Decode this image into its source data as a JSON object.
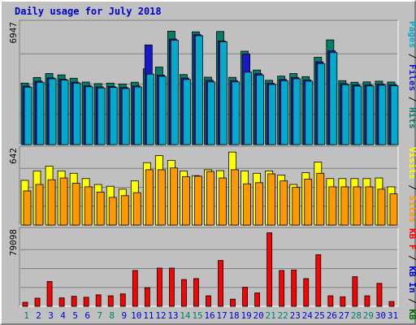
{
  "title": "Daily usage for July 2018",
  "colors": {
    "pages": "#00aacc",
    "files": "#1818c8",
    "hits": "#008066",
    "sites": "#ff9900",
    "visits": "#ffff00",
    "kb_in": "#0000cc",
    "kb_out": "#006600",
    "kb_f": "#ff0000",
    "weekend_label": "#008066",
    "weekday_label": "#0000cc"
  },
  "chart_data": [
    {
      "type": "bar",
      "panel": "top",
      "y_max_label": "6947",
      "y_max": 6947,
      "right_label_parts": [
        {
          "text": "Pages",
          "color_key": "pages"
        },
        {
          "text": " / ",
          "color_key": "text"
        },
        {
          "text": "Files",
          "color_key": "files"
        },
        {
          "text": " / ",
          "color_key": "text"
        },
        {
          "text": "Hits",
          "color_key": "hits"
        }
      ],
      "series": [
        {
          "name": "Hits",
          "color_key": "hits",
          "values": [
            3530,
            3850,
            4080,
            4000,
            3810,
            3590,
            3500,
            3530,
            3480,
            3580,
            4350,
            4450,
            6510,
            4020,
            6470,
            3870,
            6490,
            3860,
            5360,
            4280,
            3690,
            3930,
            4080,
            3900,
            5010,
            6010,
            3670,
            3580,
            3600,
            3640,
            3590
          ]
        },
        {
          "name": "Files",
          "color_key": "files",
          "values": [
            3360,
            3640,
            3830,
            3750,
            3580,
            3380,
            3310,
            3330,
            3280,
            3370,
            5720,
            3990,
            6060,
            3820,
            6310,
            3690,
            5950,
            3670,
            5200,
            4070,
            3520,
            3740,
            3850,
            3710,
            4750,
            5380,
            3500,
            3420,
            3420,
            3470,
            3430
          ]
        },
        {
          "name": "Pages",
          "color_key": "pages",
          "values": [
            3300,
            3580,
            3780,
            3700,
            3530,
            3320,
            3250,
            3280,
            3220,
            3310,
            4050,
            3920,
            5990,
            3740,
            6250,
            3600,
            5900,
            3600,
            4160,
            3980,
            3450,
            3660,
            3780,
            3640,
            4650,
            5280,
            3440,
            3360,
            3370,
            3410,
            3380
          ]
        }
      ]
    },
    {
      "type": "bar",
      "panel": "middle",
      "y_max_label": "642",
      "y_max": 642,
      "right_label_parts": [
        {
          "text": "Visits",
          "color_key": "visits"
        },
        {
          "text": " / ",
          "color_key": "text"
        },
        {
          "text": "Sites",
          "color_key": "sites"
        }
      ],
      "series": [
        {
          "name": "Visits",
          "color_key": "visits",
          "values": [
            380,
            460,
            500,
            460,
            440,
            395,
            345,
            330,
            305,
            375,
            530,
            590,
            550,
            460,
            420,
            470,
            462,
            620,
            460,
            440,
            460,
            425,
            345,
            445,
            535,
            395,
            395,
            395,
            395,
            400,
            325
          ]
        },
        {
          "name": "Sites",
          "color_key": "sites",
          "values": [
            290,
            345,
            385,
            400,
            355,
            325,
            280,
            235,
            250,
            275,
            470,
            470,
            485,
            410,
            415,
            455,
            400,
            470,
            350,
            360,
            435,
            375,
            320,
            390,
            440,
            325,
            325,
            325,
            325,
            305,
            265
          ]
        }
      ]
    },
    {
      "type": "bar",
      "panel": "bottom",
      "y_max_label": "79098",
      "y_max": 79098,
      "right_label_parts": [
        {
          "text": "KB F",
          "color_key": "kb_f"
        },
        {
          "text": " / ",
          "color_key": "text"
        },
        {
          "text": "KB In",
          "color_key": "kb_in"
        },
        {
          "text": " / ",
          "color_key": "text"
        },
        {
          "text": "KB Out",
          "color_key": "kb_out"
        }
      ],
      "series": [
        {
          "name": "KB F",
          "color_key": "kb_f",
          "values": [
            4200,
            8500,
            26000,
            8800,
            10500,
            9500,
            12000,
            11000,
            13000,
            37500,
            19500,
            40000,
            40000,
            28000,
            29000,
            11000,
            48000,
            7500,
            20000,
            14000,
            77000,
            37500,
            38000,
            29000,
            54000,
            11000,
            10000,
            31000,
            11000,
            24000,
            5000
          ]
        }
      ]
    }
  ],
  "x_labels": [
    "1",
    "2",
    "3",
    "4",
    "5",
    "6",
    "7",
    "8",
    "9",
    "10",
    "11",
    "12",
    "13",
    "14",
    "15",
    "16",
    "17",
    "18",
    "19",
    "20",
    "21",
    "22",
    "23",
    "24",
    "25",
    "26",
    "27",
    "28",
    "29",
    "30",
    "31"
  ],
  "weekend_days": [
    1,
    7,
    8,
    14,
    15,
    21,
    22,
    28,
    29
  ]
}
